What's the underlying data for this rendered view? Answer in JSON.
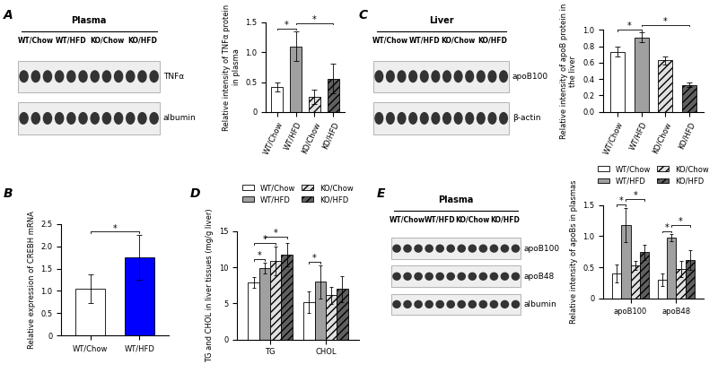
{
  "panels": [
    "A",
    "B",
    "C",
    "D",
    "E"
  ],
  "blots": [
    {
      "title": "Plasma",
      "groups": [
        "WT/Chow",
        "WT/HFD",
        "KO/Chow",
        "KO/HFD"
      ],
      "rows": [
        "TNFα",
        "albumin"
      ]
    },
    {
      "title": "Liver",
      "groups": [
        "WT/Chow",
        "WT/HFD",
        "KO/Chow",
        "KO/HFD"
      ],
      "rows": [
        "apoB100",
        "β-actin"
      ]
    },
    {
      "title": "Plasma",
      "groups": [
        "WT/Chow",
        "WT/HFD",
        "KO/Chow",
        "KO/HFD"
      ],
      "rows": [
        "apoB100",
        "apoB48",
        "albumin"
      ]
    }
  ],
  "chart_data": [
    {
      "type": "bar",
      "y_label": "Relative intensity of TNFα protein in plasma",
      "categories": [
        "WT/Chow",
        "WT/HFD",
        "KO/Chow",
        "KO/HFD"
      ],
      "values": [
        0.42,
        1.1,
        0.25,
        0.56
      ],
      "errors": [
        0.08,
        0.25,
        0.12,
        0.25
      ],
      "colors": [
        "#ffffff",
        "#a0a0a0",
        "#e0e0e0",
        "#606060"
      ],
      "ylim": [
        0,
        1.5
      ],
      "yticks": [
        0,
        0.5,
        {
          "value": 1.0,
          "label": "1.0"
        },
        1.5
      ],
      "significance": [
        {
          "pair": [
            0,
            1
          ],
          "label": "*"
        },
        {
          "pair": [
            1,
            3
          ],
          "label": "*"
        }
      ]
    },
    {
      "type": "bar",
      "y_label": "Relative expression of CREBH mRNA",
      "categories": [
        "WT/Chow",
        "WT/HFD"
      ],
      "values": [
        1.05,
        1.75
      ],
      "errors": [
        0.32,
        0.5
      ],
      "colors": [
        "#ffffff",
        "#0000ff"
      ],
      "ylim": [
        0,
        2.5
      ],
      "yticks": [
        0,
        0.5,
        {
          "value": 1.0,
          "label": "1.0"
        },
        1.5,
        {
          "value": 2.0,
          "label": "2.0"
        },
        2.5
      ],
      "significance": [
        {
          "pair": [
            0,
            1
          ],
          "label": "*"
        }
      ]
    },
    {
      "type": "bar",
      "y_label": "Relative intensity of apoB protein in the liver",
      "categories": [
        "WT/Chow",
        "WT/HFD",
        "KO/Chow",
        "KO/HFD"
      ],
      "values": [
        0.73,
        0.91,
        0.63,
        0.33
      ],
      "errors": [
        0.06,
        0.06,
        0.05,
        0.03
      ],
      "colors": [
        "#ffffff",
        "#a0a0a0",
        "#e0e0e0",
        "#606060"
      ],
      "ylim": [
        0,
        1.0
      ],
      "yticks": [
        {
          "value": 0,
          "label": "0.0"
        },
        0.2,
        0.4,
        0.6,
        0.8,
        {
          "value": 1.0,
          "label": "1.0"
        }
      ],
      "significance": [
        {
          "pair": [
            0,
            1
          ],
          "label": "*"
        },
        {
          "pair": [
            1,
            3
          ],
          "label": "*"
        }
      ]
    },
    {
      "type": "bar",
      "y_label": "TG and CHOL in liver tissues (mg/g liver)",
      "categories": [
        "TG",
        "CHOL"
      ],
      "legend": "upper center",
      "series": [
        {
          "name": "WT/Chow",
          "color": "#ffffff",
          "values": [
            7.9,
            5.2
          ],
          "errors": [
            0.8,
            1.5
          ]
        },
        {
          "name": "WT/HFD",
          "color": "#a0a0a0",
          "values": [
            9.9,
            8.0
          ],
          "errors": [
            0.8,
            2.3
          ]
        },
        {
          "name": "KO/Chow",
          "color": "#e0e0e0",
          "values": [
            10.9,
            6.1
          ],
          "errors": [
            2.0,
            1.2
          ]
        },
        {
          "name": "KO/HFD",
          "color": "#606060",
          "values": [
            11.8,
            7.0
          ],
          "errors": [
            1.6,
            1.8
          ]
        }
      ],
      "ylim": [
        0,
        15
      ],
      "yticks": [
        0,
        5,
        10,
        15
      ],
      "significance": [
        {
          "group": 0,
          "pair": [
            0,
            1
          ],
          "label": "*"
        },
        {
          "group": 0,
          "pair": [
            0,
            2
          ],
          "label": "*"
        },
        {
          "group": 0,
          "pair": [
            1,
            3
          ],
          "label": "*"
        },
        {
          "group": 1,
          "pair": [
            0,
            1
          ],
          "label": "*"
        }
      ]
    },
    {
      "type": "bar",
      "y_label": "Relative intensity of apoBs in plasmas",
      "categories": [
        "apoB100",
        "apoB48"
      ],
      "legend": "upper center",
      "series": [
        {
          "name": "WT/Chow",
          "color": "#ffffff",
          "values": [
            0.4,
            0.3
          ],
          "errors": [
            0.15,
            0.1
          ]
        },
        {
          "name": "WT/HFD",
          "color": "#a0a0a0",
          "values": [
            1.18,
            0.98
          ],
          "errors": [
            0.28,
            0.06
          ]
        },
        {
          "name": "KO/Chow",
          "color": "#e0e0e0",
          "values": [
            0.53,
            0.47
          ],
          "errors": [
            0.07,
            0.13
          ]
        },
        {
          "name": "KO/HFD",
          "color": "#606060",
          "values": [
            0.74,
            0.62
          ],
          "errors": [
            0.12,
            0.16
          ]
        }
      ],
      "ylim": [
        0,
        1.5
      ],
      "yticks": [
        0,
        0.5,
        {
          "value": 1.0,
          "label": "1.0"
        },
        1.5
      ],
      "significance": [
        {
          "group": 0,
          "pair": [
            0,
            1
          ],
          "label": "*"
        },
        {
          "group": 0,
          "pair": [
            1,
            3
          ],
          "label": "*"
        },
        {
          "group": 1,
          "pair": [
            0,
            1
          ],
          "label": "*"
        },
        {
          "group": 1,
          "pair": [
            1,
            3
          ],
          "label": "*"
        }
      ]
    }
  ]
}
